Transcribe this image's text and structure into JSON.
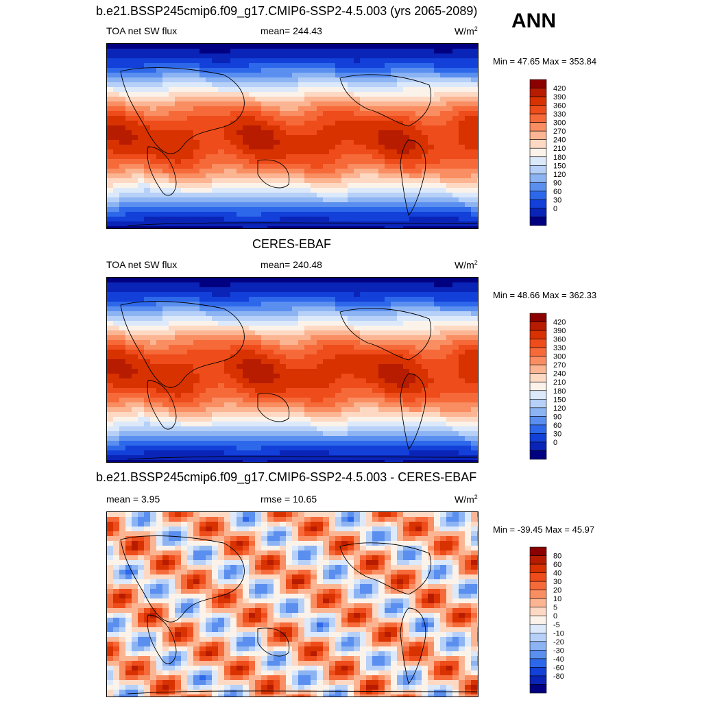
{
  "season": "ANN",
  "panels": [
    {
      "title": "b.e21.BSSP245cmip6.f09_g17.CMIP6-SSP2-4.5.003 (yrs 2065-2089)",
      "left_label": "TOA net SW flux",
      "center_label": "mean= 244.43",
      "units": "W/m",
      "units_sup": "2",
      "minmax": "Min =  47.65 Max = 353.84",
      "field": "model"
    },
    {
      "title": "CERES-EBAF",
      "left_label": "TOA net SW flux",
      "center_label": "mean= 240.48",
      "units": "W/m",
      "units_sup": "2",
      "minmax": "Min =  48.66 Max = 362.33",
      "field": "obs"
    },
    {
      "title": "b.e21.BSSP245cmip6.f09_g17.CMIP6-SSP2-4.5.003 - CERES-EBAF",
      "left_label": "mean =   3.95",
      "center_label": "rmse =  10.65",
      "units": "W/m",
      "units_sup": "2",
      "minmax": "Min = -39.45 Max =  45.97",
      "field": "diff"
    }
  ],
  "colorbars": {
    "absolute": {
      "labels": [
        "420",
        "390",
        "360",
        "330",
        "300",
        "270",
        "240",
        "210",
        "180",
        "150",
        "120",
        "90",
        "60",
        "30",
        "0"
      ],
      "colors": [
        "#8b0000",
        "#b71c00",
        "#d83200",
        "#ee4c1a",
        "#f66a3a",
        "#f98e62",
        "#fbb593",
        "#fdd9c4",
        "#fbf3ea",
        "#dce9fb",
        "#b6d0f8",
        "#8cb3f2",
        "#5a8ff0",
        "#2e68ea",
        "#1240d8",
        "#0a24b8",
        "#000080"
      ]
    },
    "difference": {
      "labels": [
        "80",
        "60",
        "40",
        "30",
        "20",
        "10",
        "5",
        "0",
        "-5",
        "-10",
        "-20",
        "-30",
        "-40",
        "-60",
        "-80"
      ],
      "colors": [
        "#8b0000",
        "#b71c00",
        "#d83200",
        "#ee4c1a",
        "#f66a3a",
        "#f98e62",
        "#fbb593",
        "#fdd9c4",
        "#fbf3ea",
        "#dce9fb",
        "#b6d0f8",
        "#8cb3f2",
        "#5a8ff0",
        "#2e68ea",
        "#1240d8",
        "#0a24b8",
        "#000080"
      ]
    }
  }
}
